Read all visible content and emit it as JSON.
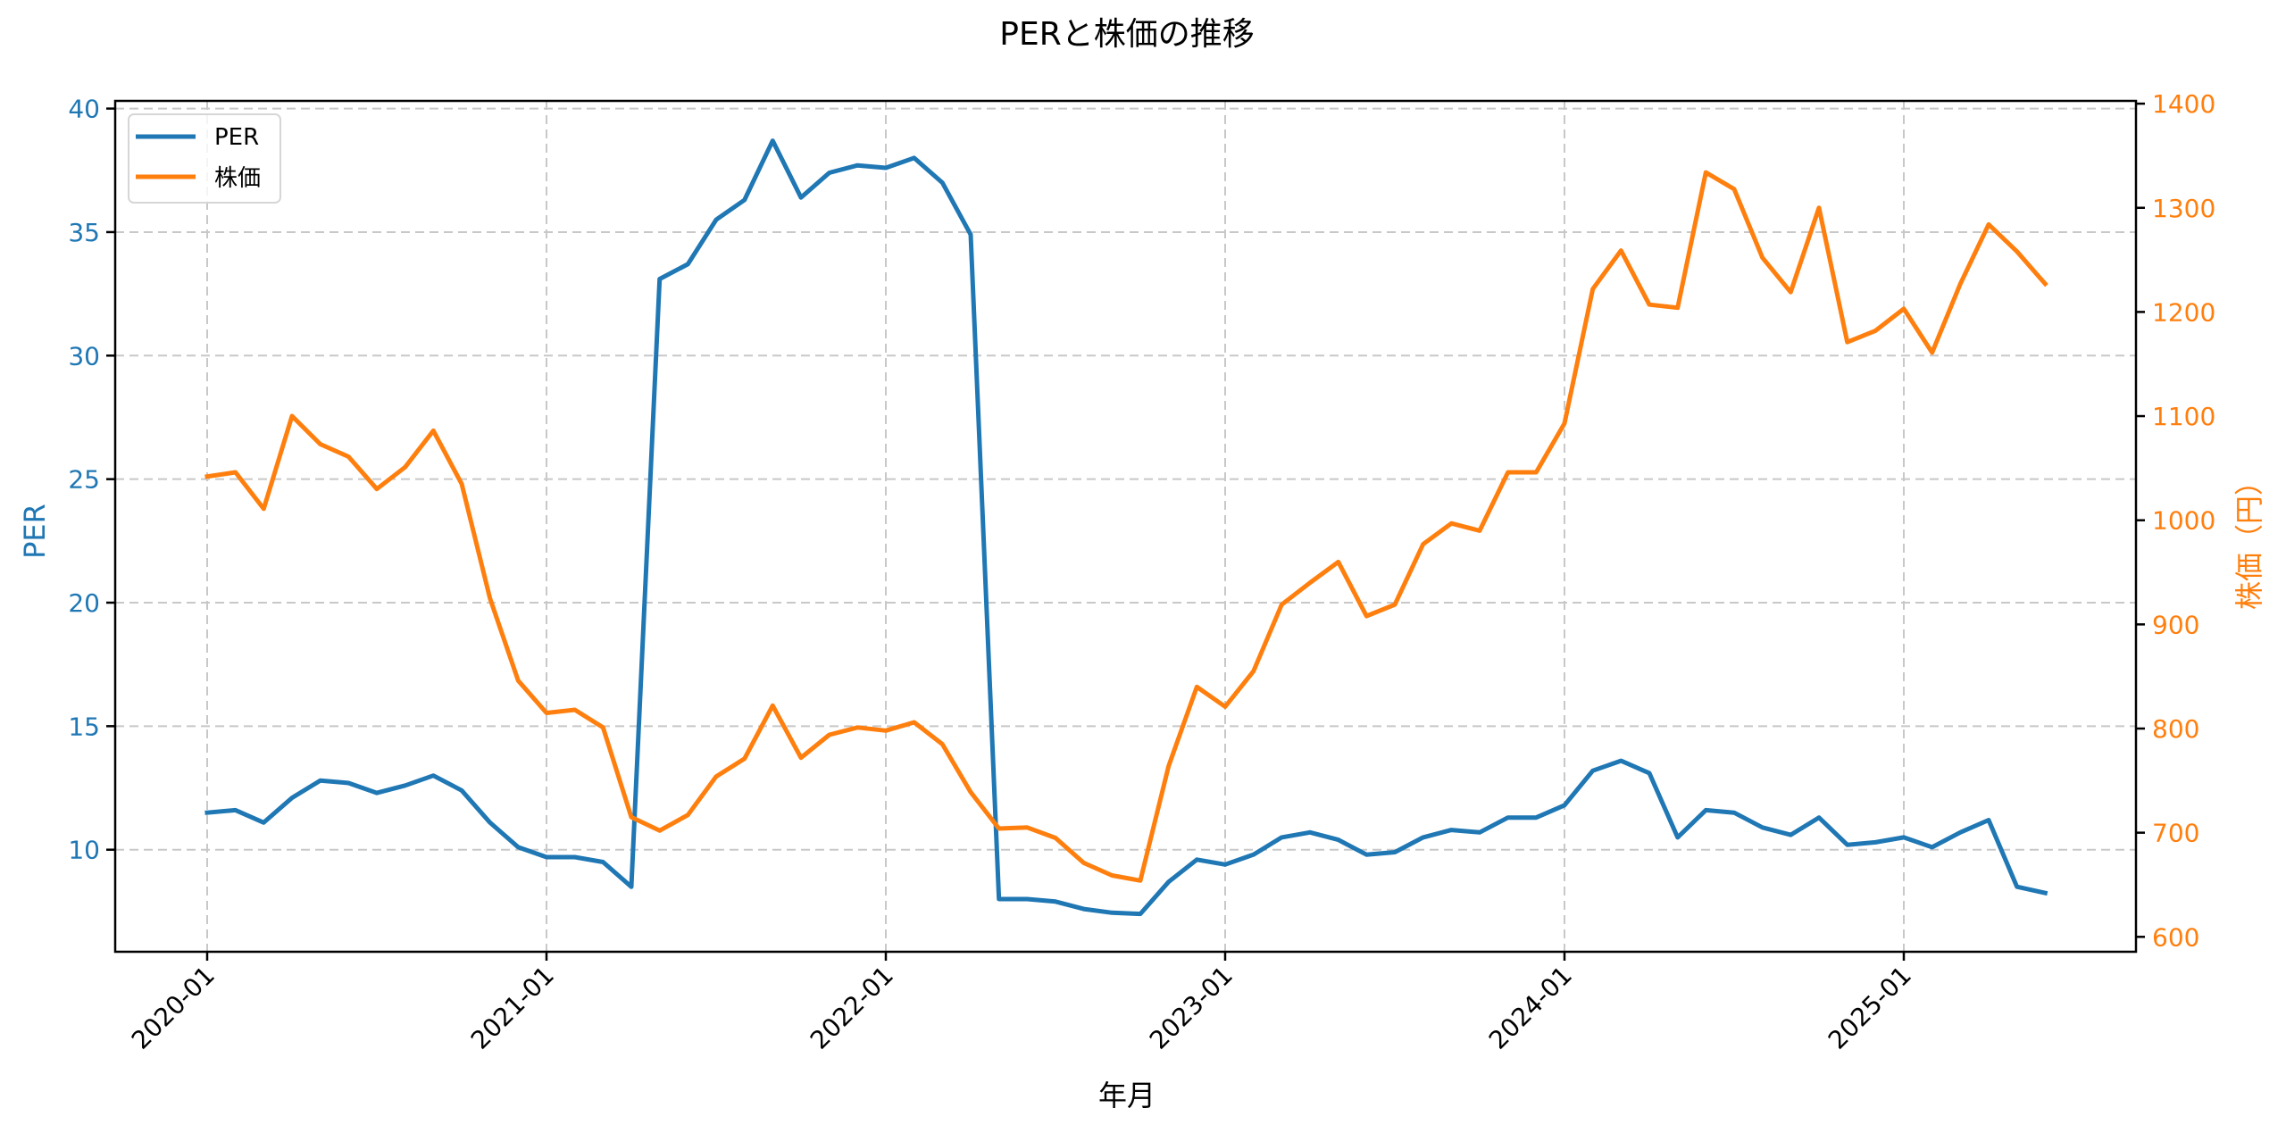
{
  "chart_data": {
    "type": "line",
    "title": "PERと株価の推移",
    "xlabel": "年月",
    "ylabel_left": "PER",
    "ylabel_right": "株価（円）",
    "x_start": "2020-01",
    "x_tick_labels": [
      "2020-01",
      "2021-01",
      "2022-01",
      "2023-01",
      "2024-01",
      "2025-01"
    ],
    "y_left_ticks": [
      10,
      15,
      20,
      25,
      30,
      35,
      40
    ],
    "y_right_ticks": [
      600,
      700,
      800,
      900,
      1000,
      1100,
      1200,
      1300,
      1400
    ],
    "ylim_left": [
      5.9,
      40.3
    ],
    "ylim_right": [
      586,
      1403
    ],
    "grid": true,
    "legend_position": "upper left",
    "x": [
      "2020-01",
      "2020-02",
      "2020-03",
      "2020-04",
      "2020-05",
      "2020-06",
      "2020-07",
      "2020-08",
      "2020-09",
      "2020-10",
      "2020-11",
      "2020-12",
      "2021-01",
      "2021-02",
      "2021-03",
      "2021-04",
      "2021-05",
      "2021-06",
      "2021-07",
      "2021-08",
      "2021-09",
      "2021-10",
      "2021-11",
      "2021-12",
      "2022-01",
      "2022-02",
      "2022-03",
      "2022-04",
      "2022-05",
      "2022-06",
      "2022-07",
      "2022-08",
      "2022-09",
      "2022-10",
      "2022-11",
      "2022-12",
      "2023-01",
      "2023-02",
      "2023-03",
      "2023-04",
      "2023-05",
      "2023-06",
      "2023-07",
      "2023-08",
      "2023-09",
      "2023-10",
      "2023-11",
      "2023-12",
      "2024-01",
      "2024-02",
      "2024-03",
      "2024-04",
      "2024-05",
      "2024-06",
      "2024-07",
      "2024-08",
      "2024-09",
      "2024-10",
      "2024-11",
      "2024-12",
      "2025-01",
      "2025-02",
      "2025-03",
      "2025-04",
      "2025-05",
      "2025-06"
    ],
    "series": [
      {
        "name": "PER",
        "axis": "left",
        "color": "#1f77b4",
        "values": [
          11.5,
          11.6,
          11.1,
          12.1,
          12.8,
          12.7,
          12.3,
          12.6,
          13.0,
          12.4,
          11.1,
          10.1,
          9.7,
          9.7,
          9.5,
          8.5,
          33.1,
          33.7,
          35.5,
          36.3,
          38.7,
          36.4,
          37.4,
          37.7,
          37.6,
          38.0,
          37.0,
          34.9,
          8.0,
          8.0,
          7.9,
          7.6,
          7.45,
          7.4,
          8.7,
          9.6,
          9.4,
          9.8,
          10.5,
          10.7,
          10.4,
          9.8,
          9.9,
          10.5,
          10.8,
          10.7,
          11.3,
          11.3,
          11.8,
          13.2,
          13.6,
          13.1,
          10.5,
          11.6,
          11.5,
          10.9,
          10.6,
          11.3,
          10.2,
          10.3,
          10.5,
          10.1,
          10.7,
          11.2,
          8.5,
          8.25
        ]
      },
      {
        "name": "株価",
        "axis": "right",
        "color": "#ff7f0e",
        "values": [
          1042,
          1046,
          1011,
          1100,
          1073,
          1061,
          1030,
          1051,
          1086,
          1035,
          925,
          846,
          815,
          818,
          801,
          715,
          702,
          717,
          754,
          771,
          822,
          772,
          794,
          801,
          798,
          806,
          785,
          739,
          704,
          705,
          695,
          671,
          659,
          654,
          764,
          840,
          821,
          855,
          919,
          940,
          960,
          908,
          919,
          977,
          997,
          990,
          1046,
          1046,
          1093,
          1222,
          1259,
          1207,
          1204,
          1334,
          1318,
          1252,
          1219,
          1300,
          1171,
          1182,
          1203,
          1161,
          1227,
          1284,
          1258,
          1227
        ]
      }
    ]
  },
  "colors": {
    "per": "#1f77b4",
    "price": "#ff7f0e",
    "grid": "#c8c8c8",
    "frame": "#000000"
  },
  "legend": {
    "items": [
      {
        "label": "PER",
        "color": "#1f77b4"
      },
      {
        "label": "株価",
        "color": "#ff7f0e"
      }
    ]
  }
}
